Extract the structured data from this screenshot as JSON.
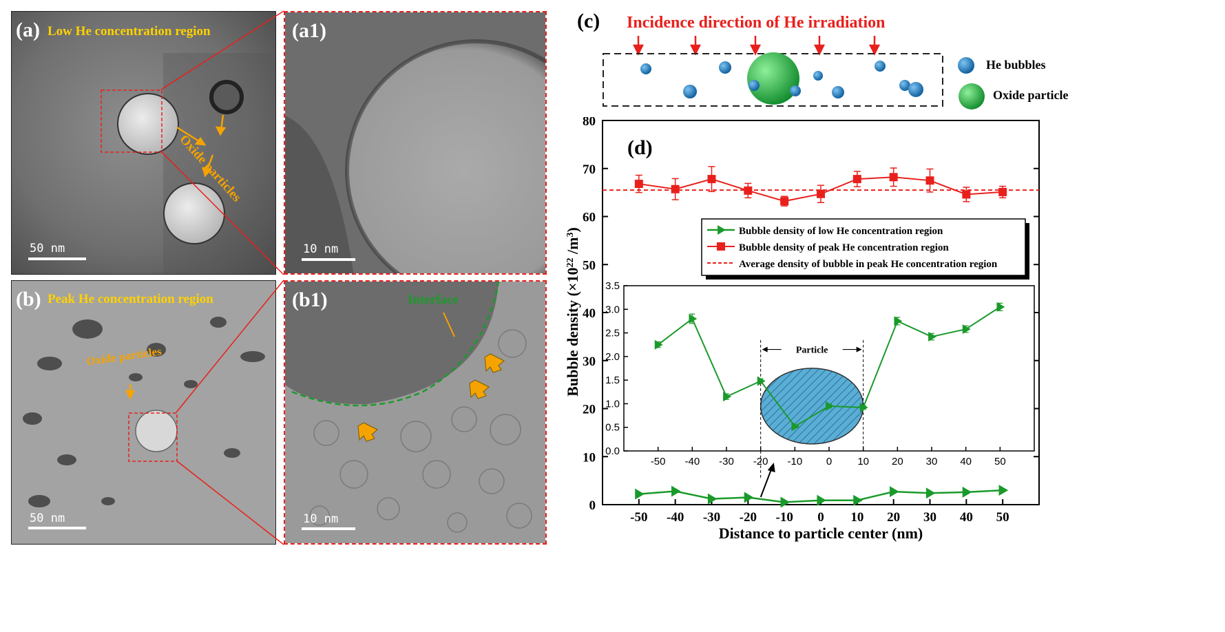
{
  "panel_a": {
    "label": "(a)",
    "title": "Low He concentration region",
    "scale": "50 nm",
    "annotation": "Oxide particles"
  },
  "panel_a1": {
    "label": "(a1)",
    "scale": "10 nm"
  },
  "panel_b": {
    "label": "(b)",
    "title": "Peak He concentration region",
    "scale": "50 nm",
    "annotation": "Oxide particles"
  },
  "panel_b1": {
    "label": "(b1)",
    "scale": "10 nm",
    "annotation": "Interface"
  },
  "panel_c": {
    "label": "(c)",
    "title": "Incidence direction of He irradiation",
    "legend_bubble": "He bubbles",
    "legend_particle": "Oxide particle"
  },
  "colors": {
    "red": "#e8201c",
    "green": "#1a9a2a",
    "blue": "#1e7fc4",
    "orange": "#f5a300",
    "yellow": "#ffd200"
  },
  "chart_data": [
    {
      "type": "line",
      "panel_label": "(d)",
      "xlabel": "Distance to particle center (nm)",
      "ylabel": "Bubble density (×10²² /m³)",
      "ylabel_parts": {
        "pre": "Bubble density (×10",
        "sup1": "22",
        "mid": " /m",
        "sup2": "3",
        "post": ")"
      },
      "xlim": [
        -60,
        60
      ],
      "ylim": [
        0,
        80
      ],
      "xticks": [
        -50,
        -40,
        -30,
        -20,
        -10,
        0,
        10,
        20,
        30,
        40,
        50
      ],
      "yticks": [
        0,
        10,
        20,
        30,
        40,
        50,
        60,
        70,
        80
      ],
      "x": [
        -50,
        -40,
        -30,
        -20,
        -10,
        0,
        10,
        20,
        30,
        40,
        50
      ],
      "series": [
        {
          "name": "Bubble density of low He concentration region",
          "color": "#1a9a2a",
          "marker": "triangle-right",
          "values": [
            2.2,
            2.8,
            1.2,
            1.5,
            0.5,
            0.9,
            0.9,
            2.7,
            2.4,
            2.6,
            3.0
          ]
        },
        {
          "name": "Bubble density of peak He concentration region",
          "color": "#e8201c",
          "marker": "square",
          "values": [
            66.8,
            65.7,
            67.8,
            65.4,
            63.2,
            64.7,
            67.8,
            68.2,
            67.5,
            64.6,
            65.1
          ],
          "errors": [
            1.8,
            2.2,
            2.6,
            1.5,
            1.0,
            1.8,
            1.6,
            1.9,
            2.4,
            1.5,
            1.2
          ]
        },
        {
          "name": "Average density of bubble in peak He concentration region",
          "color": "#e8201c",
          "style": "dashed",
          "value": 65.5
        }
      ],
      "legend": "top-right"
    },
    {
      "type": "line",
      "role": "inset",
      "xlim": [
        -60,
        60
      ],
      "ylim": [
        0,
        3.5
      ],
      "xticks": [
        -50,
        -40,
        -30,
        -20,
        -10,
        0,
        10,
        20,
        30,
        40,
        50
      ],
      "yticks": [
        "0.0",
        "0.5",
        "1.0",
        "1.5",
        "2.0",
        "2.5",
        "3.0",
        "3.5"
      ],
      "x": [
        -50,
        -40,
        -30,
        -20,
        -10,
        0,
        10,
        20,
        30,
        40,
        50
      ],
      "values": [
        2.25,
        2.8,
        1.15,
        1.48,
        0.52,
        0.95,
        0.92,
        2.75,
        2.42,
        2.58,
        3.05
      ],
      "errors": [
        0.06,
        0.1,
        0.06,
        0.05,
        0.03,
        0.04,
        0.04,
        0.08,
        0.07,
        0.07,
        0.08
      ],
      "color": "#1a9a2a",
      "particle_label": "Particle",
      "particle_range": [
        -20,
        10
      ]
    }
  ]
}
